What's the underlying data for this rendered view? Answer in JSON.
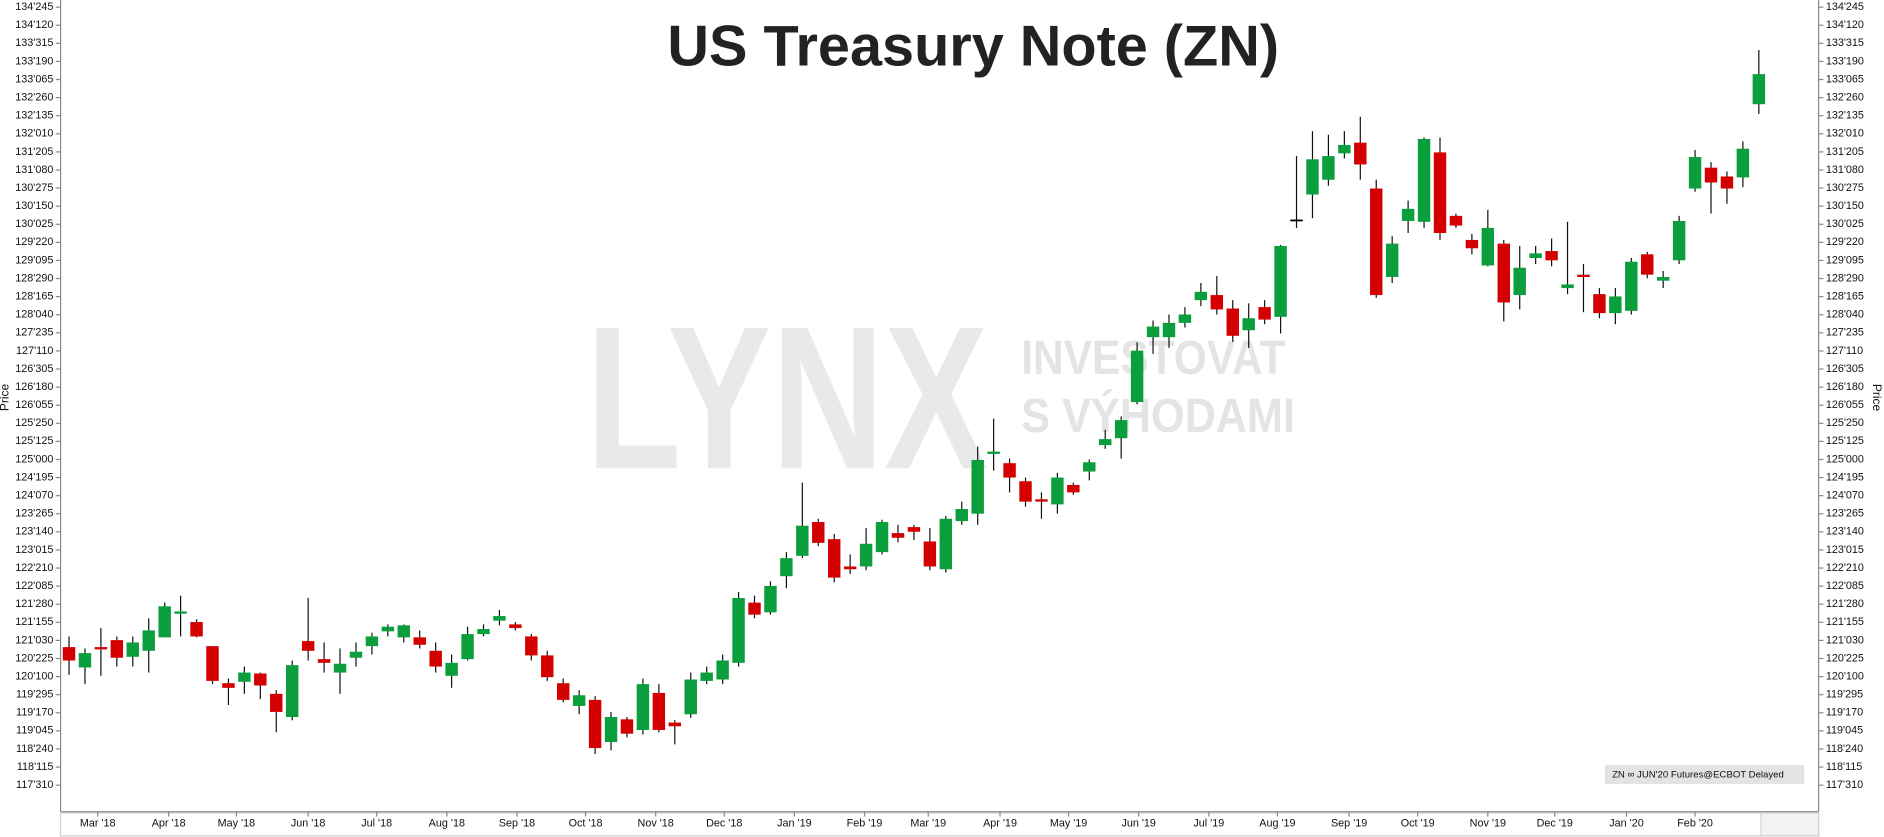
{
  "chart_data": {
    "type": "candlestick",
    "title": "US Treasury Note (ZN)",
    "y_label": "Price",
    "watermark": {
      "logo": "LYNX",
      "slogan": [
        "INVESTOVAT",
        "S VÝHODAMI"
      ]
    },
    "source_label": "ZN ∞ JUN'20 Futures@ECBOT Delayed",
    "up_color": "#0a9e3c",
    "down_color": "#d40000",
    "flat_color": "#000000",
    "xlim": [
      -0.53,
      109.6
    ],
    "xticks": [
      {
        "value": 1.8,
        "label": "Mar '18"
      },
      {
        "value": 6.25,
        "label": "Apr '18"
      },
      {
        "value": 10.5,
        "label": "May '18"
      },
      {
        "value": 15.0,
        "label": "Jun '18"
      },
      {
        "value": 19.3,
        "label": "Jul '18"
      },
      {
        "value": 23.7,
        "label": "Aug '18"
      },
      {
        "value": 28.1,
        "label": "Sep '18"
      },
      {
        "value": 32.4,
        "label": "Oct '18"
      },
      {
        "value": 36.8,
        "label": "Nov '18"
      },
      {
        "value": 41.1,
        "label": "Dec '18"
      },
      {
        "value": 45.5,
        "label": "Jan '19"
      },
      {
        "value": 49.9,
        "label": "Feb '19"
      },
      {
        "value": 53.9,
        "label": "Mar '19"
      },
      {
        "value": 58.4,
        "label": "Apr '19"
      },
      {
        "value": 62.7,
        "label": "May '19"
      },
      {
        "value": 67.1,
        "label": "Jun '19"
      },
      {
        "value": 71.5,
        "label": "Jul '19"
      },
      {
        "value": 75.8,
        "label": "Aug '19"
      },
      {
        "value": 80.3,
        "label": "Sep '19"
      },
      {
        "value": 84.6,
        "label": "Oct '19"
      },
      {
        "value": 89.0,
        "label": "Nov '19"
      },
      {
        "value": 93.2,
        "label": "Dec '19"
      },
      {
        "value": 97.7,
        "label": "Jan '20"
      },
      {
        "value": 102.0,
        "label": "Feb '20"
      }
    ],
    "ylim": [
      117.42,
      134.92
    ],
    "yticks": [
      {
        "value": 134.765625,
        "label": "134'245"
      },
      {
        "value": 134.375,
        "label": "134'120"
      },
      {
        "value": 133.984375,
        "label": "133'315"
      },
      {
        "value": 133.59375,
        "label": "133'190"
      },
      {
        "value": 133.203125,
        "label": "133'065"
      },
      {
        "value": 132.8125,
        "label": "132'260"
      },
      {
        "value": 132.421875,
        "label": "132'135"
      },
      {
        "value": 132.03125,
        "label": "132'010"
      },
      {
        "value": 131.640625,
        "label": "131'205"
      },
      {
        "value": 131.25,
        "label": "131'080"
      },
      {
        "value": 130.859375,
        "label": "130'275"
      },
      {
        "value": 130.46875,
        "label": "130'150"
      },
      {
        "value": 130.078125,
        "label": "130'025"
      },
      {
        "value": 129.6875,
        "label": "129'220"
      },
      {
        "value": 129.296875,
        "label": "129'095"
      },
      {
        "value": 128.90625,
        "label": "128'290"
      },
      {
        "value": 128.515625,
        "label": "128'165"
      },
      {
        "value": 128.125,
        "label": "128'040"
      },
      {
        "value": 127.734375,
        "label": "127'235"
      },
      {
        "value": 127.34375,
        "label": "127'110"
      },
      {
        "value": 126.953125,
        "label": "126'305"
      },
      {
        "value": 126.5625,
        "label": "126'180"
      },
      {
        "value": 126.171875,
        "label": "126'055"
      },
      {
        "value": 125.78125,
        "label": "125'250"
      },
      {
        "value": 125.390625,
        "label": "125'125"
      },
      {
        "value": 125,
        "label": "125'000"
      },
      {
        "value": 124.609375,
        "label": "124'195"
      },
      {
        "value": 124.21875,
        "label": "124'070"
      },
      {
        "value": 123.828125,
        "label": "123'265"
      },
      {
        "value": 123.4375,
        "label": "123'140"
      },
      {
        "value": 123.046875,
        "label": "123'015"
      },
      {
        "value": 122.65625,
        "label": "122'210"
      },
      {
        "value": 122.265625,
        "label": "122'085"
      },
      {
        "value": 121.875,
        "label": "121'280"
      },
      {
        "value": 121.484375,
        "label": "121'155"
      },
      {
        "value": 121.09375,
        "label": "121'030"
      },
      {
        "value": 120.703125,
        "label": "120'225"
      },
      {
        "value": 120.3125,
        "label": "120'100"
      },
      {
        "value": 119.921875,
        "label": "119'295"
      },
      {
        "value": 119.53125,
        "label": "119'170"
      },
      {
        "value": 119.140625,
        "label": "119'045"
      },
      {
        "value": 118.75,
        "label": "118'240"
      },
      {
        "value": 118.359375,
        "label": "118'115"
      },
      {
        "value": 117.96875,
        "label": "117'310"
      }
    ],
    "open": [
      120.95,
      120.51,
      120.95,
      121.1,
      120.74,
      120.87,
      121.16,
      121.67,
      121.49,
      120.97,
      120.17,
      120.2,
      120.38,
      119.94,
      119.44,
      121.08,
      120.69,
      120.4,
      120.72,
      120.97,
      121.29,
      121.16,
      121.16,
      120.87,
      120.33,
      120.69,
      121.23,
      121.52,
      121.44,
      121.18,
      120.77,
      120.17,
      119.68,
      119.81,
      118.9,
      119.39,
      119.16,
      119.96,
      119.32,
      119.5,
      120.22,
      120.25,
      120.61,
      121.91,
      121.7,
      122.48,
      122.92,
      123.65,
      123.28,
      122.69,
      122.69,
      123.0,
      123.41,
      123.54,
      123.23,
      122.63,
      123.67,
      123.83,
      125.12,
      124.92,
      124.53,
      124.14,
      124.03,
      124.45,
      124.74,
      125.31,
      125.46,
      126.24,
      127.64,
      127.64,
      127.95,
      128.44,
      128.55,
      128.26,
      127.79,
      128.29,
      128.08,
      130.18,
      130.72,
      131.04,
      131.61,
      131.84,
      130.85,
      128.94,
      130.15,
      130.13,
      131.63,
      130.26,
      129.74,
      129.19,
      129.66,
      128.55,
      129.35,
      129.5,
      128.7,
      128.99,
      128.57,
      128.16,
      128.21,
      129.43,
      128.86,
      129.3,
      130.85,
      131.3,
      131.11,
      131.09,
      132.67
    ],
    "high": [
      121.18,
      120.92,
      121.36,
      121.18,
      121.18,
      121.57,
      121.91,
      122.06,
      121.55,
      120.97,
      120.27,
      120.53,
      120.4,
      120.02,
      120.66,
      122.01,
      121.05,
      120.92,
      121.05,
      121.26,
      121.44,
      121.44,
      121.31,
      121.05,
      120.79,
      121.39,
      121.44,
      121.75,
      121.49,
      121.23,
      120.87,
      120.27,
      120.02,
      119.89,
      119.55,
      119.44,
      120.27,
      120.15,
      119.37,
      120.4,
      120.53,
      120.79,
      122.14,
      122.06,
      122.37,
      123.0,
      124.5,
      123.72,
      123.39,
      122.95,
      123.52,
      123.7,
      123.59,
      123.59,
      123.52,
      123.78,
      124.09,
      125.28,
      125.88,
      125.02,
      124.61,
      124.29,
      124.71,
      124.5,
      125.0,
      125.64,
      125.93,
      127.53,
      128.0,
      128.13,
      128.29,
      128.81,
      128.96,
      128.44,
      128.37,
      128.44,
      129.63,
      131.55,
      132.09,
      132.01,
      132.09,
      132.4,
      131.04,
      129.82,
      130.59,
      131.95,
      131.95,
      130.31,
      129.87,
      130.39,
      129.74,
      129.61,
      129.61,
      129.77,
      130.13,
      129.22,
      128.7,
      128.7,
      129.35,
      129.48,
      129.07,
      130.26,
      131.68,
      131.42,
      131.22,
      131.87,
      133.84
    ],
    "low": [
      120.35,
      120.15,
      120.33,
      120.53,
      120.53,
      120.4,
      121.16,
      121.18,
      121.16,
      120.15,
      119.7,
      119.94,
      119.83,
      119.11,
      119.37,
      120.66,
      120.4,
      119.94,
      120.53,
      120.79,
      121.18,
      121.05,
      120.92,
      120.4,
      120.07,
      120.66,
      121.18,
      121.42,
      121.31,
      120.66,
      120.22,
      119.76,
      119.5,
      118.64,
      118.72,
      119.0,
      119.06,
      119.11,
      118.85,
      119.42,
      120.15,
      120.15,
      120.53,
      121.57,
      121.65,
      122.22,
      122.87,
      123.13,
      122.35,
      122.53,
      122.61,
      122.95,
      123.21,
      123.26,
      122.61,
      122.56,
      123.59,
      123.59,
      124.76,
      124.29,
      123.98,
      123.72,
      123.83,
      124.24,
      124.55,
      125.23,
      125.02,
      126.19,
      127.28,
      127.41,
      127.85,
      128.31,
      128.13,
      127.54,
      127.41,
      127.92,
      127.72,
      130.0,
      130.21,
      130.91,
      131.5,
      131.04,
      128.49,
      128.81,
      129.89,
      130.0,
      129.74,
      130.0,
      129.43,
      129.17,
      127.98,
      128.24,
      129.22,
      129.17,
      128.57,
      128.18,
      128.05,
      127.92,
      128.13,
      128.91,
      128.7,
      129.22,
      130.78,
      130.31,
      130.52,
      130.88,
      132.46
    ],
    "close": [
      120.66,
      120.82,
      120.9,
      120.72,
      121.05,
      121.31,
      121.83,
      121.72,
      121.18,
      120.22,
      120.07,
      120.4,
      120.12,
      119.55,
      120.56,
      120.87,
      120.61,
      120.59,
      120.85,
      121.18,
      121.39,
      121.42,
      121.0,
      120.53,
      120.61,
      121.23,
      121.34,
      121.62,
      121.36,
      120.77,
      120.3,
      119.81,
      119.91,
      118.77,
      119.44,
      119.08,
      120.15,
      119.16,
      119.24,
      120.25,
      120.4,
      120.66,
      122.01,
      121.65,
      122.27,
      122.87,
      123.57,
      123.2,
      122.45,
      122.63,
      123.18,
      123.65,
      123.31,
      123.44,
      122.69,
      123.72,
      123.93,
      124.99,
      125.17,
      124.61,
      124.09,
      124.09,
      124.61,
      124.29,
      124.94,
      125.44,
      125.85,
      127.35,
      127.87,
      127.95,
      128.13,
      128.62,
      128.24,
      127.67,
      128.05,
      128.02,
      129.61,
      130.18,
      131.48,
      131.55,
      131.79,
      131.37,
      128.55,
      129.66,
      130.41,
      131.92,
      129.89,
      130.05,
      129.56,
      130.0,
      128.39,
      129.14,
      129.45,
      129.3,
      128.78,
      128.94,
      128.16,
      128.52,
      129.27,
      128.99,
      128.94,
      130.15,
      131.53,
      130.98,
      130.85,
      131.71,
      133.32
    ]
  }
}
